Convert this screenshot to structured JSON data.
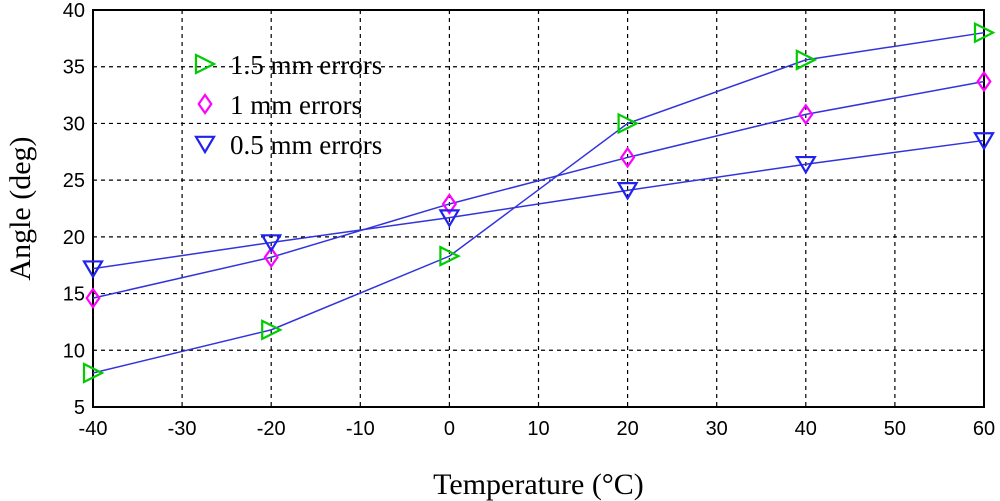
{
  "chart_data": {
    "type": "line",
    "xlabel": "Temperature (°C)",
    "ylabel": "Angle (deg)",
    "xlim": [
      -40,
      60
    ],
    "ylim": [
      5,
      40
    ],
    "xticks": [
      -40,
      -30,
      -20,
      -10,
      0,
      10,
      20,
      30,
      40,
      50,
      60
    ],
    "yticks": [
      5,
      10,
      15,
      20,
      25,
      30,
      35,
      40
    ],
    "grid": true,
    "legend_position": "top-left",
    "x": [
      -40,
      -20,
      0,
      20,
      40,
      60
    ],
    "series": [
      {
        "name": "1.5 mm errors",
        "marker": "triangle-right",
        "marker_color": "#00cc00",
        "line_color": "#3333dd",
        "values": [
          8.0,
          11.8,
          18.3,
          30.0,
          35.6,
          38.0
        ]
      },
      {
        "name": "1 mm errors",
        "marker": "diamond",
        "marker_color": "#ff00ff",
        "line_color": "#3333dd",
        "values": [
          14.6,
          18.2,
          22.9,
          27.0,
          30.8,
          33.7
        ]
      },
      {
        "name": "0.5 mm errors",
        "marker": "triangle-down",
        "marker_color": "#2222ee",
        "line_color": "#3333dd",
        "values": [
          17.2,
          19.5,
          21.7,
          24.1,
          26.4,
          28.5
        ]
      }
    ]
  }
}
